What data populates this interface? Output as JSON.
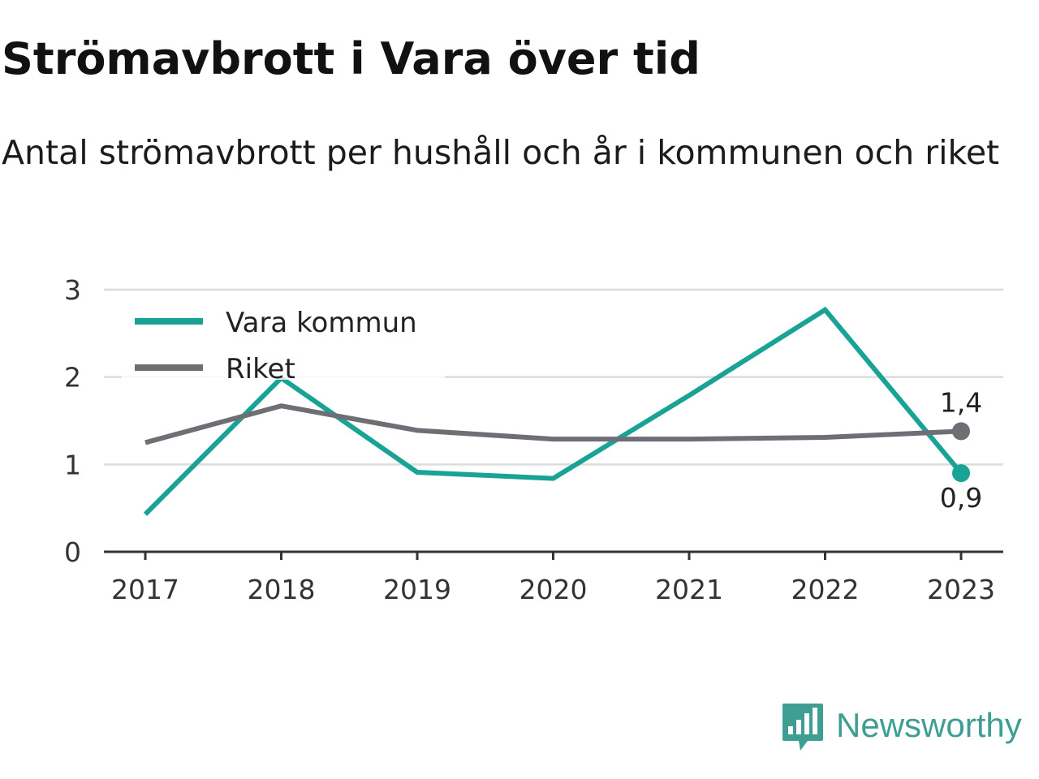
{
  "title": "Strömavbrott i Vara över tid",
  "subtitle": "Antal strömavbrott per hushåll och år i kommunen och riket",
  "brand": {
    "name": "Newsworthy",
    "color": "#3f9e93"
  },
  "chart_data": {
    "type": "line",
    "title": "",
    "xlabel": "",
    "ylabel": "",
    "categories": [
      "2017",
      "2018",
      "2019",
      "2020",
      "2021",
      "2022",
      "2023"
    ],
    "ylim": [
      0,
      3
    ],
    "yticks": [
      "0",
      "1",
      "2",
      "3"
    ],
    "grid": true,
    "legend_position": "top-left",
    "series": [
      {
        "name": "Vara kommun",
        "color": "#19a396",
        "values": [
          0.43,
          1.99,
          0.91,
          0.84,
          1.79,
          2.77,
          0.9
        ],
        "end_label": "0,9"
      },
      {
        "name": "Riket",
        "color": "#6f6e74",
        "values": [
          1.25,
          1.67,
          1.39,
          1.29,
          1.29,
          1.31,
          1.38
        ],
        "end_label": "1,4"
      }
    ]
  }
}
